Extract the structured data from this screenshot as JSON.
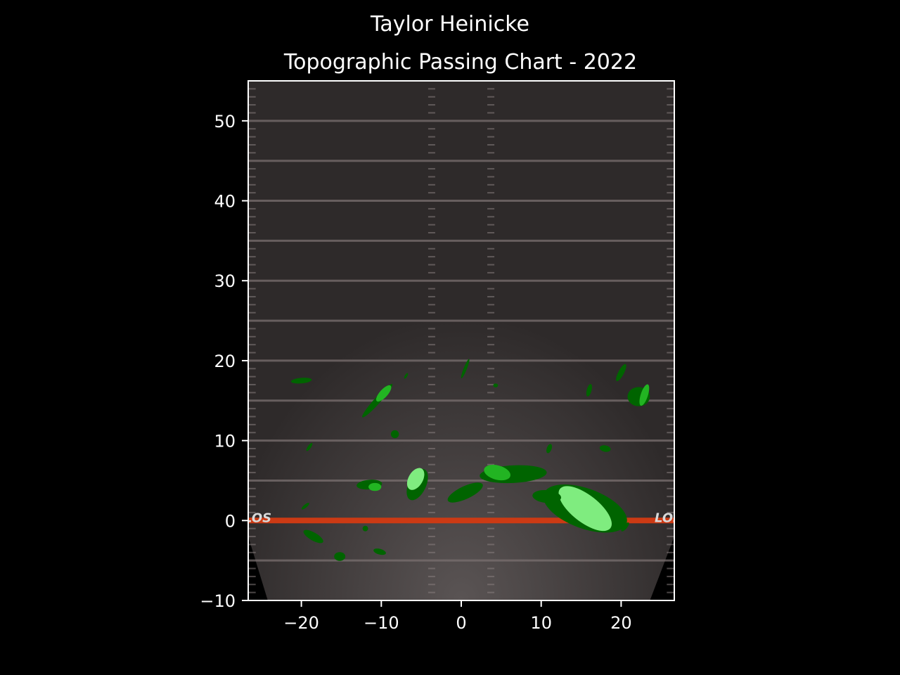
{
  "chart_data": {
    "type": "contour",
    "title": "Taylor Heinicke",
    "subtitle": "Topographic Passing Chart - 2022",
    "xlabel": "",
    "ylabel": "",
    "xlim": [
      -26.65,
      26.65
    ],
    "ylim": [
      -10,
      55
    ],
    "xticks": [
      -20,
      -10,
      0,
      10,
      20
    ],
    "yticks": [
      -10,
      0,
      10,
      20,
      30,
      40,
      50
    ],
    "xtick_labels": [
      "−20",
      "−10",
      "0",
      "10",
      "20"
    ],
    "ytick_labels": [
      "−10",
      "0",
      "10",
      "20",
      "30",
      "40",
      "50"
    ],
    "line_of_scrimmage": 0,
    "los_label": "LOS",
    "yard_lines": [
      -5,
      5,
      10,
      15,
      20,
      25,
      30,
      35,
      40,
      45,
      50
    ],
    "hash_marks_x": [
      -3.7,
      3.7
    ],
    "grid": false,
    "legend": "none",
    "colors": {
      "background": "#000000",
      "field": "#2e2a2a",
      "level_low": "#006400",
      "level_mid": "#22b422",
      "level_high": "#7fec7f",
      "los_line": "#cc3a14"
    },
    "density_regions": [
      {
        "level": 1,
        "x": 15.5,
        "y": 1.5,
        "rx": 5.5,
        "ry": 2.5,
        "rot": 20
      },
      {
        "level": 3,
        "x": 15.5,
        "y": 1.5,
        "rx": 4.0,
        "ry": 1.7,
        "rot": 38
      },
      {
        "level": 1,
        "x": 6.5,
        "y": 5.8,
        "rx": 4.2,
        "ry": 1.1,
        "rot": -3
      },
      {
        "level": 2,
        "x": 4.5,
        "y": 6.0,
        "rx": 1.7,
        "ry": 0.9,
        "rot": 15
      },
      {
        "level": 1,
        "x": 10.7,
        "y": 3.0,
        "rx": 1.8,
        "ry": 0.8,
        "rot": 5
      },
      {
        "level": 1,
        "x": 0.5,
        "y": 3.5,
        "rx": 2.4,
        "ry": 0.8,
        "rot": -25
      },
      {
        "level": 1,
        "x": -5.5,
        "y": 4.5,
        "rx": 1.1,
        "ry": 2.1,
        "rot": 25
      },
      {
        "level": 3,
        "x": -5.7,
        "y": 5.2,
        "rx": 0.9,
        "ry": 1.5,
        "rot": 30
      },
      {
        "level": 1,
        "x": -11.5,
        "y": 4.5,
        "rx": 1.6,
        "ry": 0.6,
        "rot": -5
      },
      {
        "level": 2,
        "x": -10.8,
        "y": 4.2,
        "rx": 0.8,
        "ry": 0.5,
        "rot": 0
      },
      {
        "level": 1,
        "x": -10.5,
        "y": 15.0,
        "rx": 2.8,
        "ry": 0.4,
        "rot": -48
      },
      {
        "level": 2,
        "x": -9.7,
        "y": 15.9,
        "rx": 1.3,
        "ry": 0.5,
        "rot": -48
      },
      {
        "level": 1,
        "x": -8.3,
        "y": 10.8,
        "rx": 0.5,
        "ry": 0.5,
        "rot": 0
      },
      {
        "level": 1,
        "x": -6.9,
        "y": 18.1,
        "rx": 0.4,
        "ry": 0.15,
        "rot": -60
      },
      {
        "level": 1,
        "x": -20.0,
        "y": 17.5,
        "rx": 1.3,
        "ry": 0.35,
        "rot": -5
      },
      {
        "level": 1,
        "x": -19.0,
        "y": 9.2,
        "rx": 0.6,
        "ry": 0.2,
        "rot": -55
      },
      {
        "level": 1,
        "x": -19.5,
        "y": 1.8,
        "rx": 0.6,
        "ry": 0.2,
        "rot": -40
      },
      {
        "level": 1,
        "x": -18.5,
        "y": -2.0,
        "rx": 1.4,
        "ry": 0.5,
        "rot": 30
      },
      {
        "level": 1,
        "x": -12.0,
        "y": -1.0,
        "rx": 0.35,
        "ry": 0.35,
        "rot": 0
      },
      {
        "level": 1,
        "x": -10.2,
        "y": -3.9,
        "rx": 0.8,
        "ry": 0.35,
        "rot": 15
      },
      {
        "level": 1,
        "x": -15.2,
        "y": -4.5,
        "rx": 0.7,
        "ry": 0.55,
        "rot": 0
      },
      {
        "level": 1,
        "x": 0.5,
        "y": 19.0,
        "rx": 1.3,
        "ry": 0.2,
        "rot": -68
      },
      {
        "level": 1,
        "x": 4.3,
        "y": 16.9,
        "rx": 0.3,
        "ry": 0.25,
        "rot": 0
      },
      {
        "level": 1,
        "x": 11.0,
        "y": 9.0,
        "rx": 0.6,
        "ry": 0.3,
        "rot": -70
      },
      {
        "level": 1,
        "x": 16.0,
        "y": 16.3,
        "rx": 0.8,
        "ry": 0.3,
        "rot": -75
      },
      {
        "level": 1,
        "x": 18.0,
        "y": 9.0,
        "rx": 0.7,
        "ry": 0.4,
        "rot": 10
      },
      {
        "level": 1,
        "x": 20.0,
        "y": 18.5,
        "rx": 1.2,
        "ry": 0.35,
        "rot": -62
      },
      {
        "level": 1,
        "x": 22.2,
        "y": 15.5,
        "rx": 1.4,
        "ry": 1.2,
        "rot": 0
      },
      {
        "level": 2,
        "x": 22.9,
        "y": 15.7,
        "rx": 1.4,
        "ry": 0.45,
        "rot": -72
      },
      {
        "level": 1,
        "x": 20.5,
        "y": -0.8,
        "rx": 0.7,
        "ry": 0.25,
        "rot": -50
      }
    ]
  }
}
